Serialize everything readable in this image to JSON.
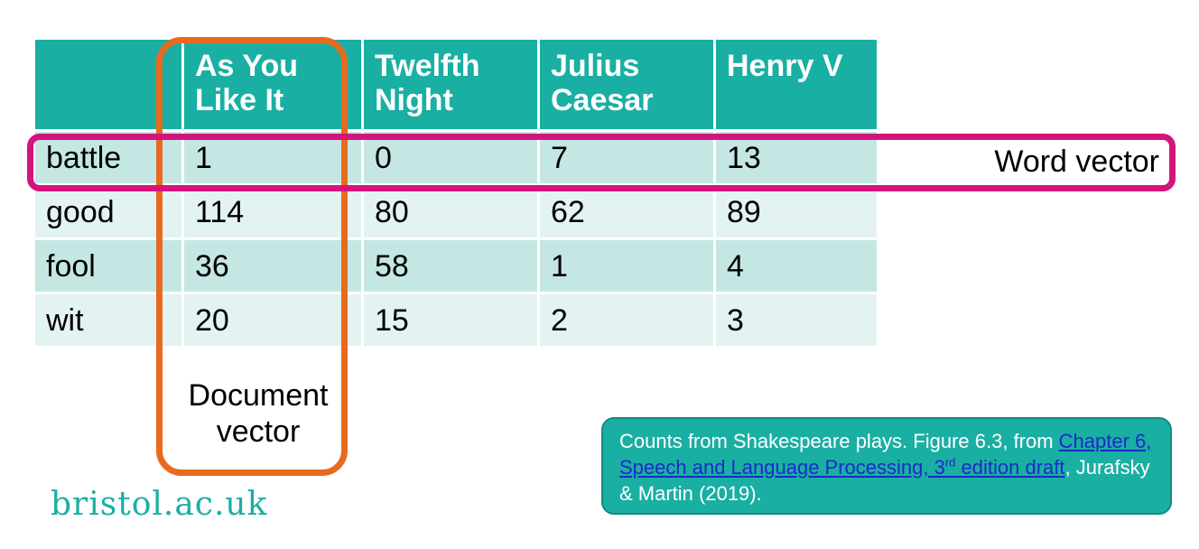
{
  "table": {
    "headers": [
      "",
      "As You Like It",
      "Twelfth Night",
      "Julius Caesar",
      "Henry V"
    ],
    "header_lines": [
      [
        ""
      ],
      [
        "As You",
        "Like It"
      ],
      [
        "Twelfth",
        "Night"
      ],
      [
        "Julius",
        "Caesar"
      ],
      [
        "Henry V"
      ]
    ],
    "rows": [
      {
        "word": "battle",
        "values": [
          "1",
          "0",
          "7",
          "13"
        ]
      },
      {
        "word": "good",
        "values": [
          "114",
          "80",
          "62",
          "89"
        ]
      },
      {
        "word": "fool",
        "values": [
          "36",
          "58",
          "1",
          "4"
        ]
      },
      {
        "word": "wit",
        "values": [
          "20",
          "15",
          "2",
          "3"
        ]
      }
    ]
  },
  "annotations": {
    "word_vector": "Word vector",
    "document_vector_lines": [
      "Document",
      "vector"
    ],
    "word_vector_color": "#d4147c",
    "document_vector_color": "#e86a1f"
  },
  "caption": {
    "prefix": "Counts from Shakespeare plays. Figure 6.3, from ",
    "link_text_main": "Chapter 6, Speech and Language Processing, 3",
    "link_sup": "rd",
    "link_text_tail": " edition draft",
    "suffix": ", Jurafsky & Martin (2019)."
  },
  "logo": "bristol.ac.uk",
  "colors": {
    "header": "#1aafa3",
    "row_odd": "#c5e7e3",
    "row_even": "#e3f3f1"
  }
}
